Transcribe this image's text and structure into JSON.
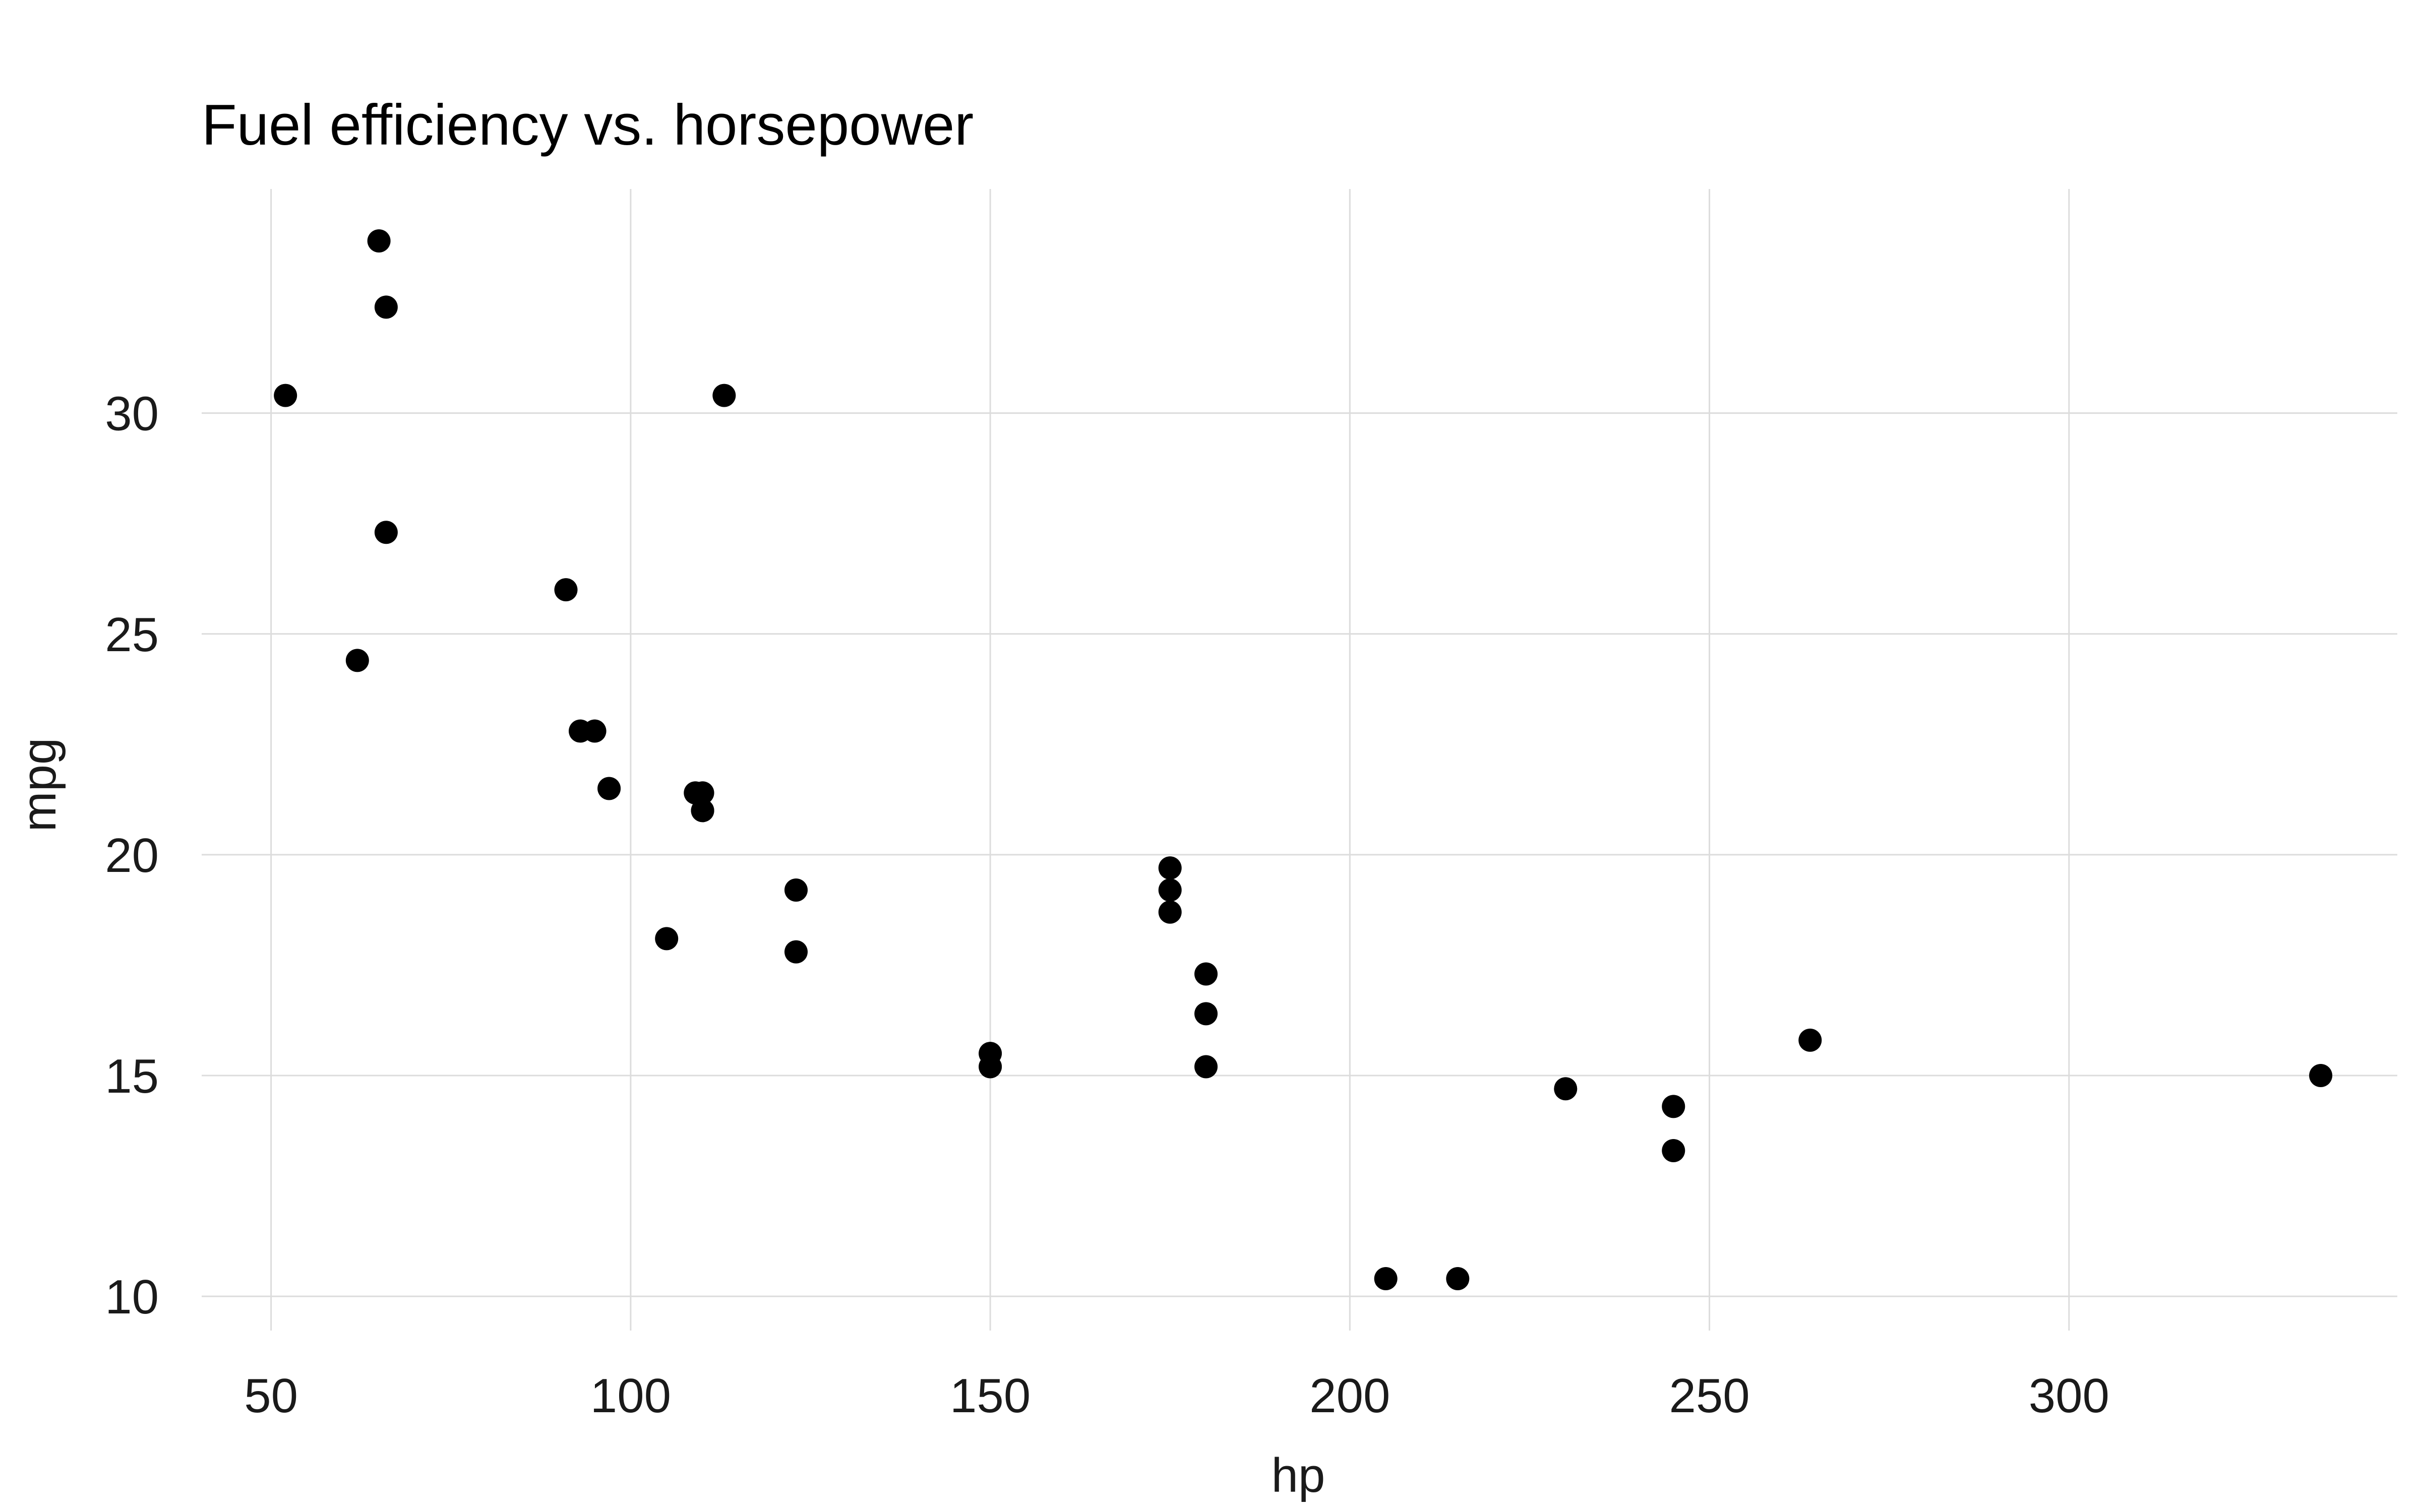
{
  "chart_data": {
    "type": "scatter",
    "title": "Fuel efficiency vs. horsepower",
    "xlabel": "hp",
    "ylabel": "mpg",
    "xlim": [
      40.35,
      345.65
    ],
    "ylim": [
      9.225,
      35.075
    ],
    "x_ticks": [
      50,
      100,
      150,
      200,
      250,
      300
    ],
    "y_ticks": [
      10,
      15,
      20,
      25,
      30
    ],
    "x_tick_labels": [
      "50",
      "100",
      "150",
      "200",
      "250",
      "300"
    ],
    "y_tick_labels": [
      "10",
      "15",
      "20",
      "25",
      "30"
    ],
    "grid": true,
    "point_color": "#000000",
    "grid_color": "#dcdcdc",
    "points": [
      {
        "x": 110,
        "y": 21.0
      },
      {
        "x": 110,
        "y": 21.0
      },
      {
        "x": 93,
        "y": 22.8
      },
      {
        "x": 110,
        "y": 21.4
      },
      {
        "x": 175,
        "y": 18.7
      },
      {
        "x": 105,
        "y": 18.1
      },
      {
        "x": 245,
        "y": 14.3
      },
      {
        "x": 62,
        "y": 24.4
      },
      {
        "x": 95,
        "y": 22.8
      },
      {
        "x": 123,
        "y": 19.2
      },
      {
        "x": 123,
        "y": 17.8
      },
      {
        "x": 180,
        "y": 16.4
      },
      {
        "x": 180,
        "y": 17.3
      },
      {
        "x": 180,
        "y": 15.2
      },
      {
        "x": 205,
        "y": 10.4
      },
      {
        "x": 215,
        "y": 10.4
      },
      {
        "x": 230,
        "y": 14.7
      },
      {
        "x": 66,
        "y": 32.4
      },
      {
        "x": 52,
        "y": 30.4
      },
      {
        "x": 65,
        "y": 33.9
      },
      {
        "x": 97,
        "y": 21.5
      },
      {
        "x": 150,
        "y": 15.5
      },
      {
        "x": 150,
        "y": 15.2
      },
      {
        "x": 245,
        "y": 13.3
      },
      {
        "x": 175,
        "y": 19.2
      },
      {
        "x": 66,
        "y": 27.3
      },
      {
        "x": 91,
        "y": 26.0
      },
      {
        "x": 113,
        "y": 30.4
      },
      {
        "x": 264,
        "y": 15.8
      },
      {
        "x": 175,
        "y": 19.7
      },
      {
        "x": 335,
        "y": 15.0
      },
      {
        "x": 109,
        "y": 21.4
      }
    ]
  }
}
